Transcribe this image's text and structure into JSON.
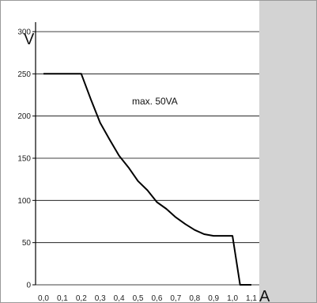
{
  "chart_data": {
    "type": "line",
    "title": "",
    "xlabel": "A",
    "ylabel": "V",
    "annotation": "max. 50VA",
    "xlim": [
      0.0,
      1.1
    ],
    "ylim": [
      0,
      300
    ],
    "x_tick_labels": [
      "0,0",
      "0,1",
      "0,2",
      "0,3",
      "0,4",
      "0,5",
      "0,6",
      "0,7",
      "0,8",
      "0,9",
      "1,0",
      "1,1"
    ],
    "y_tick_labels": [
      "0",
      "50",
      "100",
      "150",
      "200",
      "250",
      "300"
    ],
    "grid": "horizontal",
    "series": [
      {
        "x": [
          0.0,
          0.2,
          0.25,
          0.3,
          0.35,
          0.4,
          0.45,
          0.5,
          0.55,
          0.6,
          0.65,
          0.7,
          0.75,
          0.8,
          0.85,
          0.9,
          0.95,
          1.0,
          1.04,
          1.08,
          1.1
        ],
        "y": [
          250,
          250,
          220,
          192,
          172,
          153,
          139,
          123,
          112,
          98,
          90,
          80,
          72,
          65,
          60,
          58,
          58,
          58,
          0,
          0,
          0
        ]
      }
    ],
    "colors": {
      "plot_bg": "#ffffff",
      "outer_bg": "#d3d3d3",
      "line": "#000000",
      "grid": "#000000"
    }
  }
}
